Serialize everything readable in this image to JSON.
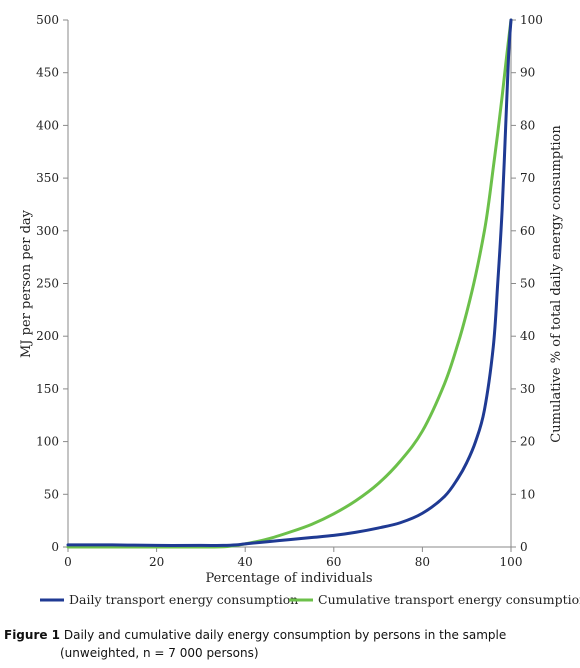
{
  "chart_data": {
    "type": "line",
    "xlabel": "Percentage of individuals",
    "ylabel": "MJ per person per day",
    "y2label": "Cumulative % of total daily energy consumption",
    "xlim": [
      0,
      100
    ],
    "ylim": [
      0,
      500
    ],
    "y2lim": [
      0,
      100
    ],
    "x_ticks": [
      0,
      20,
      40,
      60,
      80,
      100
    ],
    "y_ticks": [
      0,
      50,
      100,
      150,
      200,
      250,
      300,
      350,
      400,
      450,
      500
    ],
    "y2_ticks": [
      0,
      10,
      20,
      30,
      40,
      50,
      60,
      70,
      80,
      90,
      100
    ],
    "grid": false,
    "legend_position": "bottom",
    "series": [
      {
        "name": "Daily transport energy consumption",
        "axis": "left",
        "color": "#1f3a93",
        "x": [
          0,
          10,
          20,
          30,
          35,
          38,
          40,
          45,
          50,
          55,
          60,
          65,
          70,
          75,
          80,
          85,
          88,
          90,
          92,
          94,
          96,
          97,
          98,
          99,
          99.5,
          100
        ],
        "y": [
          2,
          2,
          1.5,
          1.5,
          1.5,
          2,
          3,
          5,
          7,
          9,
          11,
          14,
          18,
          23,
          32,
          48,
          65,
          80,
          100,
          130,
          190,
          250,
          320,
          420,
          470,
          500
        ]
      },
      {
        "name": "Cumulative transport energy consumption",
        "axis": "right",
        "color": "#6cc04a",
        "x": [
          0,
          10,
          20,
          30,
          36,
          40,
          45,
          50,
          55,
          60,
          65,
          70,
          75,
          80,
          85,
          88,
          90,
          92,
          94,
          95,
          96,
          97,
          98,
          99,
          100
        ],
        "y": [
          0,
          0,
          0,
          0,
          0.1,
          0.6,
          1.5,
          2.8,
          4.3,
          6.3,
          8.8,
          12,
          16.3,
          22,
          31,
          38.5,
          44.5,
          51.5,
          60,
          65.5,
          72,
          78.5,
          85.5,
          93,
          100
        ]
      }
    ]
  },
  "caption": {
    "label": "Figure 1",
    "text_line1": "Daily and cumulative daily energy consumption by persons in the sample",
    "text_line2": "(unweighted, n = 7 000 persons)"
  }
}
